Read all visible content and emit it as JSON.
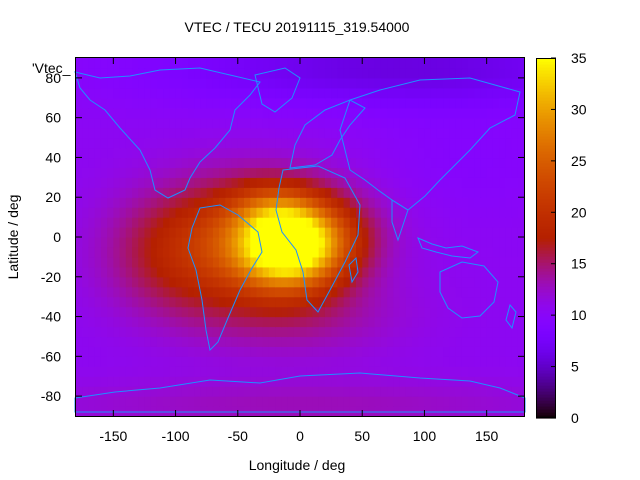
{
  "chart_data": {
    "type": "heatmap",
    "title": "VTEC / TECU 20191115_319.54000",
    "xlabel": "Longitude / deg",
    "ylabel": "Latitude / deg",
    "key_label": "'Vtec_",
    "xlim": [
      -180,
      180
    ],
    "ylim": [
      -90,
      90
    ],
    "x_ticks": [
      -150,
      -100,
      -50,
      0,
      50,
      100,
      150
    ],
    "y_ticks": [
      -80,
      -60,
      -40,
      -20,
      0,
      20,
      40,
      60,
      80
    ],
    "colorbar": {
      "range": [
        0,
        35
      ],
      "ticks": [
        0,
        5,
        10,
        15,
        20,
        25,
        30,
        35
      ],
      "palette": "gnuplot-pm3d",
      "unit": "TECU"
    },
    "grid": false,
    "overlay": "coastlines",
    "coastline_color": "#1e90ff",
    "value_samples": [
      {
        "lon": -10,
        "lat": -5,
        "vtec": 32
      },
      {
        "lon": -20,
        "lat": 15,
        "vtec": 27
      },
      {
        "lon": -60,
        "lat": -10,
        "vtec": 22
      },
      {
        "lon": -110,
        "lat": 0,
        "vtec": 18
      },
      {
        "lon": 30,
        "lat": 0,
        "vtec": 21
      },
      {
        "lon": 0,
        "lat": -40,
        "vtec": 16
      },
      {
        "lon": 100,
        "lat": 30,
        "vtec": 11
      },
      {
        "lon": 150,
        "lat": -30,
        "vtec": 11
      },
      {
        "lon": 90,
        "lat": 80,
        "vtec": 6
      },
      {
        "lon": 0,
        "lat": -80,
        "vtec": 13
      }
    ]
  }
}
